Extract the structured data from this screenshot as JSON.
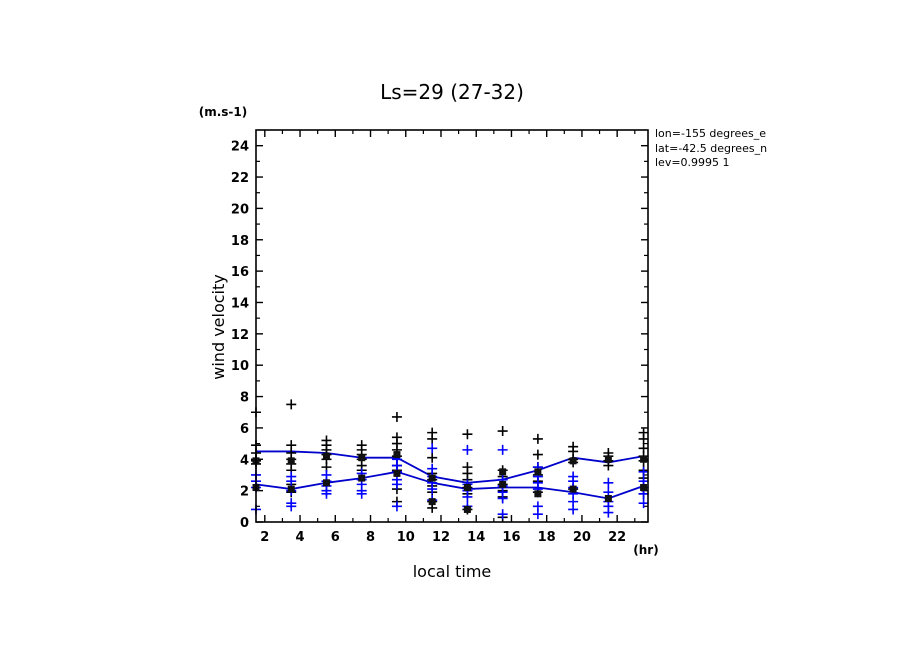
{
  "chart_data": {
    "type": "scatter",
    "title": "Ls=29 (27-32)",
    "xlabel": "local time",
    "ylabel": "wind velocity",
    "xunit": "(hr)",
    "yunit": "(m.s-1)",
    "xlim": [
      1.5,
      23.75
    ],
    "ylim": [
      0,
      25
    ],
    "xticks": [
      2,
      4,
      6,
      8,
      10,
      12,
      14,
      16,
      18,
      20,
      22
    ],
    "yticks": [
      0,
      2,
      4,
      6,
      8,
      10,
      12,
      14,
      16,
      18,
      20,
      22,
      24
    ],
    "info": [
      "lon=-155 degrees_e",
      "lat=-42.5 degrees_n",
      "lev=0.9995 1"
    ],
    "colors": {
      "series_a": "#000000",
      "series_b": "#0000ff",
      "line": "#0000cc"
    },
    "x": [
      1.5,
      3.5,
      5.5,
      7.5,
      9.5,
      11.5,
      13.5,
      15.5,
      17.5,
      19.5,
      21.5,
      23.5
    ],
    "series": [
      {
        "name": "black points",
        "color": "#000000",
        "points": [
          [
            1.5,
            3.9
          ],
          [
            1.5,
            4.4
          ],
          [
            1.5,
            4.9
          ],
          [
            1.5,
            4.0
          ],
          [
            1.5,
            3.7
          ],
          [
            1.5,
            7.0
          ],
          [
            3.5,
            7.5
          ],
          [
            3.5,
            4.9
          ],
          [
            3.5,
            4.4
          ],
          [
            3.5,
            4.0
          ],
          [
            3.5,
            3.7
          ],
          [
            3.5,
            3.3
          ],
          [
            3.5,
            2.4
          ],
          [
            3.5,
            1.9
          ],
          [
            5.5,
            5.2
          ],
          [
            5.5,
            4.9
          ],
          [
            5.5,
            4.6
          ],
          [
            5.5,
            4.3
          ],
          [
            5.5,
            4.0
          ],
          [
            5.5,
            3.5
          ],
          [
            7.5,
            4.9
          ],
          [
            7.5,
            4.6
          ],
          [
            7.5,
            4.3
          ],
          [
            7.5,
            4.0
          ],
          [
            7.5,
            3.6
          ],
          [
            7.5,
            3.3
          ],
          [
            9.5,
            6.7
          ],
          [
            9.5,
            5.4
          ],
          [
            9.5,
            5.0
          ],
          [
            9.5,
            4.6
          ],
          [
            9.5,
            4.2
          ],
          [
            9.5,
            3.6
          ],
          [
            9.5,
            3.3
          ],
          [
            9.5,
            2.1
          ],
          [
            9.5,
            1.3
          ],
          [
            11.5,
            5.7
          ],
          [
            11.5,
            5.3
          ],
          [
            11.5,
            4.1
          ],
          [
            11.5,
            3.1
          ],
          [
            11.5,
            2.7
          ],
          [
            11.5,
            2.3
          ],
          [
            11.5,
            1.9
          ],
          [
            11.5,
            1.3
          ],
          [
            11.5,
            0.9
          ],
          [
            13.5,
            5.6
          ],
          [
            13.5,
            3.5
          ],
          [
            13.5,
            3.1
          ],
          [
            13.5,
            2.7
          ],
          [
            13.5,
            2.2
          ],
          [
            13.5,
            1.8
          ],
          [
            13.5,
            0.8
          ],
          [
            15.5,
            5.8
          ],
          [
            15.5,
            3.3
          ],
          [
            15.5,
            2.9
          ],
          [
            15.5,
            2.4
          ],
          [
            15.5,
            2.0
          ],
          [
            15.5,
            1.6
          ],
          [
            15.5,
            0.3
          ],
          [
            17.5,
            5.3
          ],
          [
            17.5,
            4.3
          ],
          [
            17.5,
            3.5
          ],
          [
            17.5,
            3.0
          ],
          [
            17.5,
            2.6
          ],
          [
            17.5,
            1.9
          ],
          [
            19.5,
            4.8
          ],
          [
            19.5,
            4.5
          ],
          [
            19.5,
            4.0
          ],
          [
            19.5,
            3.8
          ],
          [
            19.5,
            2.1
          ],
          [
            21.5,
            4.4
          ],
          [
            21.5,
            4.2
          ],
          [
            21.5,
            3.9
          ],
          [
            21.5,
            3.6
          ],
          [
            23.5,
            5.7
          ],
          [
            23.5,
            5.3
          ],
          [
            23.5,
            4.7
          ],
          [
            23.5,
            4.2
          ],
          [
            23.5,
            3.9
          ],
          [
            23.5,
            3.3
          ],
          [
            23.5,
            2.8
          ],
          [
            23.5,
            2.2
          ],
          [
            23.5,
            1.8
          ]
        ]
      },
      {
        "name": "blue points",
        "color": "#0000ff",
        "points": [
          [
            1.5,
            3.0
          ],
          [
            1.5,
            2.6
          ],
          [
            1.5,
            2.2
          ],
          [
            1.5,
            0.8
          ],
          [
            3.5,
            2.9
          ],
          [
            3.5,
            2.6
          ],
          [
            3.5,
            2.0
          ],
          [
            3.5,
            1.2
          ],
          [
            3.5,
            1.0
          ],
          [
            5.5,
            3.0
          ],
          [
            5.5,
            2.6
          ],
          [
            5.5,
            2.3
          ],
          [
            5.5,
            2.0
          ],
          [
            5.5,
            1.8
          ],
          [
            7.5,
            3.1
          ],
          [
            7.5,
            2.7
          ],
          [
            7.5,
            2.4
          ],
          [
            7.5,
            2.0
          ],
          [
            7.5,
            1.8
          ],
          [
            9.5,
            4.0
          ],
          [
            9.5,
            3.6
          ],
          [
            9.5,
            3.2
          ],
          [
            9.5,
            2.7
          ],
          [
            9.5,
            2.4
          ],
          [
            9.5,
            1.0
          ],
          [
            11.5,
            4.7
          ],
          [
            11.5,
            3.4
          ],
          [
            11.5,
            2.9
          ],
          [
            11.5,
            2.5
          ],
          [
            11.5,
            2.1
          ],
          [
            11.5,
            1.4
          ],
          [
            13.5,
            4.6
          ],
          [
            13.5,
            2.4
          ],
          [
            13.5,
            2.0
          ],
          [
            13.5,
            1.6
          ],
          [
            13.5,
            1.0
          ],
          [
            15.5,
            4.6
          ],
          [
            15.5,
            2.7
          ],
          [
            15.5,
            2.3
          ],
          [
            15.5,
            1.9
          ],
          [
            15.5,
            1.5
          ],
          [
            15.5,
            0.5
          ],
          [
            17.5,
            3.5
          ],
          [
            17.5,
            2.9
          ],
          [
            17.5,
            2.5
          ],
          [
            17.5,
            2.1
          ],
          [
            17.5,
            1.0
          ],
          [
            17.5,
            0.5
          ],
          [
            19.5,
            2.9
          ],
          [
            19.5,
            2.6
          ],
          [
            19.5,
            2.2
          ],
          [
            19.5,
            1.8
          ],
          [
            19.5,
            1.3
          ],
          [
            19.5,
            0.8
          ],
          [
            21.5,
            2.5
          ],
          [
            21.5,
            1.9
          ],
          [
            21.5,
            1.3
          ],
          [
            21.5,
            1.0
          ],
          [
            21.5,
            0.6
          ],
          [
            23.5,
            3.2
          ],
          [
            23.5,
            2.6
          ],
          [
            23.5,
            2.2
          ],
          [
            23.5,
            1.8
          ],
          [
            23.5,
            1.2
          ]
        ]
      }
    ],
    "squares": [
      [
        1.5,
        3.9
      ],
      [
        1.5,
        2.2
      ],
      [
        3.5,
        3.9
      ],
      [
        3.5,
        2.1
      ],
      [
        5.5,
        4.2
      ],
      [
        5.5,
        2.5
      ],
      [
        7.5,
        4.1
      ],
      [
        7.5,
        2.8
      ],
      [
        9.5,
        4.3
      ],
      [
        9.5,
        3.1
      ],
      [
        11.5,
        2.8
      ],
      [
        11.5,
        1.3
      ],
      [
        13.5,
        2.2
      ],
      [
        13.5,
        0.8
      ],
      [
        15.5,
        3.2
      ],
      [
        15.5,
        2.4
      ],
      [
        17.5,
        3.2
      ],
      [
        17.5,
        1.8
      ],
      [
        19.5,
        3.9
      ],
      [
        19.5,
        2.1
      ],
      [
        21.5,
        4.0
      ],
      [
        21.5,
        1.5
      ],
      [
        23.5,
        4.0
      ],
      [
        23.5,
        2.2
      ]
    ],
    "lines": [
      {
        "name": "mean upper",
        "values": [
          4.5,
          4.5,
          4.4,
          4.1,
          4.1,
          2.9,
          2.5,
          2.7,
          3.3,
          4.1,
          3.8,
          4.2
        ]
      },
      {
        "name": "mean lower",
        "values": [
          2.4,
          2.1,
          2.5,
          2.8,
          3.2,
          2.5,
          2.1,
          2.2,
          2.2,
          1.9,
          1.5,
          2.3
        ]
      }
    ]
  }
}
